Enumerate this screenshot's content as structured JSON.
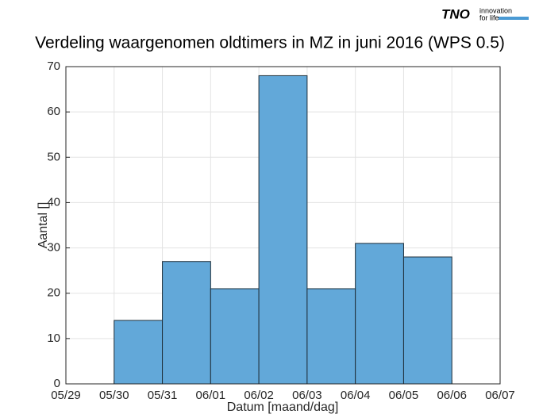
{
  "logo": {
    "name": "TNO",
    "tagline_1": "innovation",
    "tagline_2": "for life"
  },
  "chart_data": {
    "type": "histogram",
    "title": "Verdeling waargenomen oldtimers in MZ in juni 2016 (WPS 0.5)",
    "xlabel": "Datum [maand/dag]",
    "ylabel": "Aantal []",
    "xticks": [
      "05/29",
      "05/30",
      "05/31",
      "06/01",
      "06/02",
      "06/03",
      "06/04",
      "06/05",
      "06/06",
      "06/07"
    ],
    "bins": [
      "05/30",
      "05/31",
      "06/01",
      "06/02",
      "06/03",
      "06/04",
      "06/05",
      "06/06"
    ],
    "values": [
      14,
      27,
      21,
      68,
      21,
      31,
      28
    ],
    "color": "#62a8d9",
    "ylim": [
      0,
      70
    ],
    "yticks": [
      0,
      10,
      20,
      30,
      40,
      50,
      60,
      70
    ],
    "grid": true
  }
}
